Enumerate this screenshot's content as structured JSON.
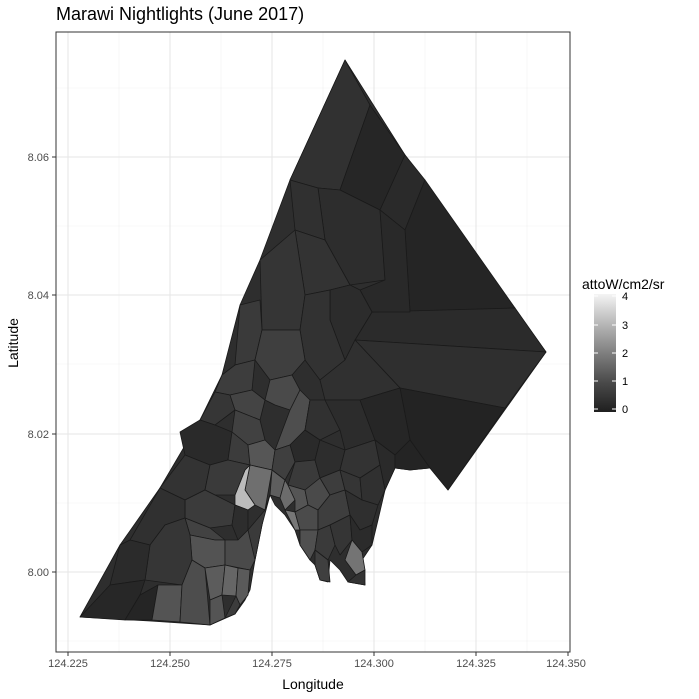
{
  "title": "Marawi Nightlights (June 2017)",
  "xlabel": "Longitude",
  "ylabel": "Latitude",
  "x_ticks": [
    "124.225",
    "124.250",
    "124.275",
    "124.300",
    "124.325",
    "124.350"
  ],
  "y_ticks": [
    "8.00",
    "8.02",
    "8.04",
    "8.06"
  ],
  "legend": {
    "title": "attoW/cm2/sr",
    "ticks": [
      "4",
      "3",
      "2",
      "1",
      "0"
    ]
  },
  "chart_data": {
    "type": "choropleth",
    "title": "Marawi Nightlights (June 2017)",
    "xlabel": "Longitude",
    "ylabel": "Latitude",
    "xlim": [
      124.224,
      124.351
    ],
    "ylim": [
      7.9905,
      8.0755
    ],
    "fill_scale": {
      "name": "attoW/cm2/sr",
      "min": 0,
      "max": 4,
      "low_color": "#132B43",
      "palette": "greyscale dark-to-light"
    },
    "grid": true,
    "legend_position": "right",
    "typical_radiance": {
      "northern_and_eastern_barangays": 0.3,
      "central_barangays": 0.6,
      "southwestern_barangays": 0.8,
      "riverside_barangays": 1.5,
      "brightest_barangay": 3.3
    }
  },
  "colors": {
    "panel_border": "#333333",
    "grid": "#ebebeb",
    "boundary": "#1a1a1a"
  }
}
